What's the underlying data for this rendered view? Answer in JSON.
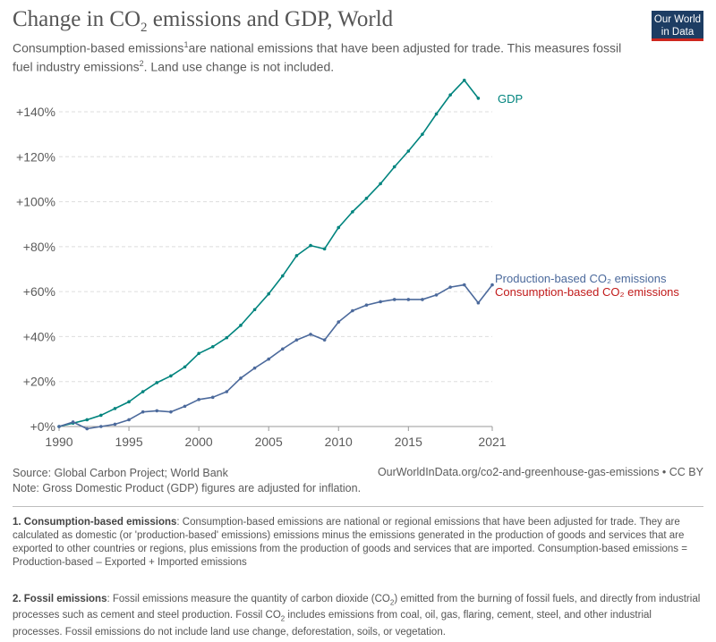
{
  "header": {
    "title_main": "Change in CO",
    "title_sub": "2",
    "title_rest": " emissions and GDP, World",
    "subtitle_a": "Consumption-based emissions",
    "subtitle_sup1": "1",
    "subtitle_b": "are national emissions that have been adjusted for trade. This measures fossil fuel industry emissions",
    "subtitle_sup2": "2",
    "subtitle_c": ". Land use change is not included.",
    "logo_line1": "Our World",
    "logo_line2": "in Data"
  },
  "chart_data": {
    "type": "line",
    "x": [
      1990,
      1991,
      1992,
      1993,
      1994,
      1995,
      1996,
      1997,
      1998,
      1999,
      2000,
      2001,
      2002,
      2003,
      2004,
      2005,
      2006,
      2007,
      2008,
      2009,
      2010,
      2011,
      2012,
      2013,
      2014,
      2015,
      2016,
      2017,
      2018,
      2019,
      2020,
      2021
    ],
    "xticks": [
      1990,
      1995,
      2000,
      2005,
      2010,
      2015,
      2021
    ],
    "xlim": [
      1990,
      2021
    ],
    "ylim": [
      0,
      150
    ],
    "yticks": [
      0,
      20,
      40,
      60,
      80,
      100,
      120,
      140
    ],
    "ytick_labels": [
      "+0%",
      "+20%",
      "+40%",
      "+60%",
      "+80%",
      "+100%",
      "+120%",
      "+140%"
    ],
    "grid": true,
    "series": [
      {
        "name": "GDP",
        "color": "#00847e",
        "x": [
          1990,
          1991,
          1992,
          1993,
          1994,
          1995,
          1996,
          1997,
          1998,
          1999,
          2000,
          2001,
          2002,
          2003,
          2004,
          2005,
          2006,
          2007,
          2008,
          2009,
          2010,
          2011,
          2012,
          2013,
          2014,
          2015,
          2016,
          2017,
          2018,
          2019,
          2020
        ],
        "values": [
          0,
          1.5,
          3,
          5,
          8,
          11,
          15.5,
          19.5,
          22.5,
          26.5,
          32.5,
          35.5,
          39.5,
          45,
          52,
          59,
          67,
          76,
          80.5,
          79,
          88.5,
          95.5,
          101.5,
          108,
          115.5,
          122.5,
          130,
          139,
          147.5,
          154,
          146
        ]
      },
      {
        "name": "Production-based CO₂ emissions",
        "color": "#4c6a9c",
        "x": [
          1990,
          1991,
          1992,
          1993,
          1994,
          1995,
          1996,
          1997,
          1998,
          1999,
          2000,
          2001,
          2002,
          2003,
          2004,
          2005,
          2006,
          2007,
          2008,
          2009,
          2010,
          2011,
          2012,
          2013,
          2014,
          2015,
          2016,
          2017,
          2018,
          2019,
          2020,
          2021
        ],
        "values": [
          0,
          2,
          -1,
          0,
          1,
          3,
          6.5,
          7,
          6.5,
          9,
          12,
          13,
          15.5,
          21.5,
          26,
          30,
          34.5,
          38.5,
          41,
          38.5,
          46.5,
          51.5,
          54,
          55.5,
          56.5,
          56.5,
          56.5,
          58.5,
          62,
          63,
          55,
          63
        ]
      }
    ],
    "extra_labels": [
      {
        "name": "Consumption-based CO₂ emissions",
        "color": "#c11a1a"
      }
    ]
  },
  "footer": {
    "source": "Source: Global Carbon Project; World Bank",
    "note": "Note: Gross Domestic Product (GDP) figures are adjusted for inflation.",
    "url": "OurWorldInData.org/co2-and-greenhouse-gas-emissions • CC BY"
  },
  "notes": {
    "n1_title": "1. Consumption-based emissions",
    "n1_text": ": Consumption-based emissions are national or regional emissions that have been adjusted for trade. They are calculated as domestic (or 'production-based' emissions) emissions minus the emissions generated in the production of goods and services that are exported to other countries or regions, plus emissions from the production of goods and services that are imported. Consumption-based emissions = Production-based – Exported + Imported emissions",
    "n2_title": "2. Fossil emissions",
    "n2_text_a": ": Fossil emissions measure the quantity of carbon dioxide (CO",
    "n2_sub1": "2",
    "n2_text_b": ") emitted from the burning of fossil fuels, and directly from industrial processes such as cement and steel production. Fossil CO",
    "n2_sub2": "2",
    "n2_text_c": " includes emissions from coal, oil, gas, flaring, cement, steel, and other industrial processes. Fossil emissions do not include land use change, deforestation, soils, or vegetation."
  }
}
